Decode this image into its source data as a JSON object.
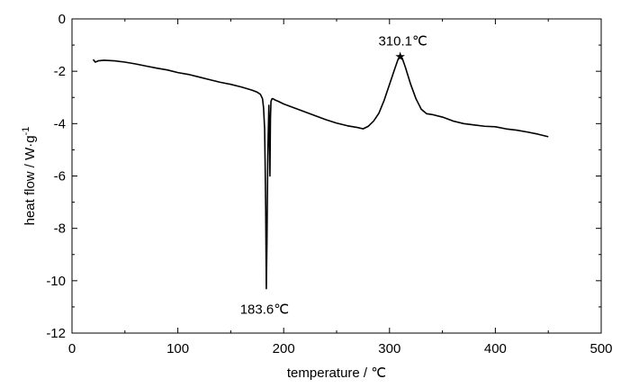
{
  "chart_data": {
    "type": "line",
    "title": "",
    "xlabel": "temperature / ℃",
    "ylabel": "heat flow / W·g",
    "ylabel_superscript": "-1",
    "xlim": [
      0,
      500
    ],
    "ylim": [
      -12,
      0
    ],
    "x_ticks": [
      0,
      100,
      200,
      300,
      400,
      500
    ],
    "y_ticks": [
      0,
      -2,
      -4,
      -6,
      -8,
      -10,
      -12
    ],
    "grid": false,
    "legend": "none",
    "line_color": "#000000",
    "series": [
      {
        "x": [
          20,
          22,
          25,
          30,
          40,
          50,
          60,
          70,
          80,
          90,
          100,
          110,
          120,
          130,
          140,
          150,
          160,
          170,
          175,
          178,
          180,
          181,
          182,
          182.5,
          183,
          183.6,
          184.2,
          185,
          186,
          186.5,
          187,
          187.5,
          188,
          189,
          190,
          192,
          195,
          200,
          210,
          220,
          230,
          240,
          250,
          260,
          270,
          275,
          280,
          285,
          290,
          295,
          300,
          305,
          308,
          310.1,
          312,
          315,
          320,
          325,
          330,
          335,
          340,
          350,
          360,
          370,
          380,
          390,
          400,
          410,
          420,
          430,
          440,
          450
        ],
        "values": [
          -1.55,
          -1.65,
          -1.6,
          -1.58,
          -1.6,
          -1.65,
          -1.72,
          -1.8,
          -1.88,
          -1.95,
          -2.05,
          -2.12,
          -2.22,
          -2.32,
          -2.42,
          -2.5,
          -2.6,
          -2.72,
          -2.8,
          -2.88,
          -3.05,
          -3.4,
          -4.2,
          -5.6,
          -7.2,
          -10.3,
          -8.5,
          -5.2,
          -3.3,
          -4.5,
          -6.0,
          -3.8,
          -3.15,
          -3.05,
          -3.05,
          -3.1,
          -3.15,
          -3.25,
          -3.4,
          -3.55,
          -3.7,
          -3.85,
          -3.98,
          -4.08,
          -4.15,
          -4.2,
          -4.1,
          -3.9,
          -3.6,
          -3.1,
          -2.5,
          -1.9,
          -1.55,
          -1.42,
          -1.5,
          -1.85,
          -2.5,
          -3.05,
          -3.45,
          -3.62,
          -3.65,
          -3.75,
          -3.9,
          -4.0,
          -4.05,
          -4.1,
          -4.12,
          -4.2,
          -4.25,
          -4.32,
          -4.4,
          -4.5
        ]
      }
    ],
    "annotations": [
      {
        "text": "310.1℃",
        "x": 310.1,
        "y": -1.42,
        "marker": "star",
        "placement": "above"
      },
      {
        "text": "183.6℃",
        "x": 183.6,
        "y": -10.3,
        "marker": "none",
        "placement": "below"
      }
    ]
  }
}
